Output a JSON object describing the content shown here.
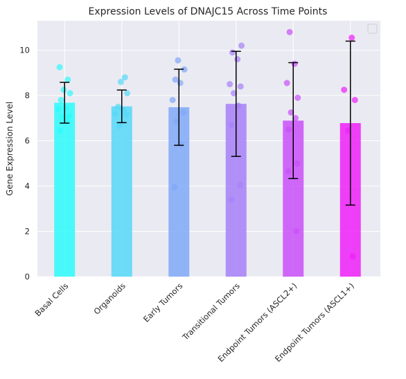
{
  "chart_data": {
    "type": "bar",
    "title": "Expression Levels of DNAJC15 Across Time Points",
    "xlabel": "",
    "ylabel": "Gene Expression Level",
    "ylim": [
      0,
      11.3
    ],
    "yticks": [
      0,
      2,
      4,
      6,
      8,
      10
    ],
    "grid": true,
    "legend": "top-right",
    "categories": [
      "Basal Cells",
      "Organoids",
      "Early Tumors",
      "Transitional Tumors",
      "Endpoint Tumors (ASCL2+)",
      "Endpoint Tumors (ASCL1+)"
    ],
    "colors": [
      "#2dfbfb",
      "#55d8f8",
      "#80a8f8",
      "#a680f8",
      "#c950f8",
      "#ef20f8"
    ],
    "values": [
      7.68,
      7.52,
      7.48,
      7.63,
      6.89,
      6.78
    ],
    "error": [
      0.9,
      0.72,
      1.68,
      2.32,
      2.56,
      3.62
    ],
    "points": [
      [
        9.25,
        8.7,
        8.25,
        8.1,
        7.8,
        7.45,
        7.4,
        7.1,
        7.05,
        6.95,
        6.45
      ],
      [
        8.8,
        8.6,
        8.1,
        7.5,
        7.35,
        7.2,
        7.15,
        6.65
      ],
      [
        9.55,
        9.15,
        8.7,
        8.55,
        7.8,
        7.25,
        6.85,
        5.85,
        3.95
      ],
      [
        10.2,
        9.9,
        9.6,
        8.5,
        8.4,
        8.1,
        7.55,
        6.7,
        4.05,
        3.4
      ],
      [
        10.8,
        9.4,
        8.55,
        7.9,
        7.25,
        7.0,
        6.5,
        5.0,
        4.65,
        2.0
      ],
      [
        10.55,
        8.25,
        7.8,
        6.45,
        0.9
      ]
    ]
  }
}
